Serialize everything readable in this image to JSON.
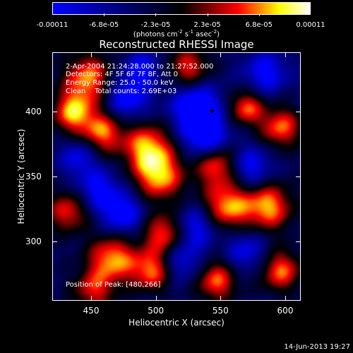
{
  "colorbar": {
    "ticks": [
      "-0.00011",
      "-6.8e-05",
      "-2.3e-05",
      "2.3e-05",
      "6.8e-05",
      "0.00011"
    ],
    "unit_prefix": "(photons cm",
    "unit_exp1": "-2",
    "unit_mid1": " s",
    "unit_exp2": "-1",
    "unit_mid2": " asec",
    "unit_exp3": "-2",
    "unit_suffix": ")",
    "range": [
      -0.00011,
      0.00011
    ],
    "colors": [
      "#0000ff",
      "#000000",
      "#ff0000",
      "#ffff00",
      "#ffffff"
    ]
  },
  "chart_data": {
    "type": "heatmap",
    "title": "Reconstructed RHESSI Image",
    "xlabel": "Heliocentric X (arcsec)",
    "ylabel": "Heliocentric Y (arcsec)",
    "xlim": [
      420,
      612
    ],
    "ylim": [
      254,
      446
    ],
    "x_ticks": [
      450,
      500,
      550,
      600
    ],
    "y_ticks": [
      300,
      350,
      400
    ],
    "annotations": {
      "time_range": "2-Apr-2004 21:24:28.000 to 21:27:52.000",
      "detectors": "Detectors: 4F 5F 6F 7F 8F, Att 0",
      "energy": "Energy Range: 25.0 - 50.0 keV",
      "method": "Clean    Total counts: 2.69E+03",
      "peak": "Position of Peak: [480,266]"
    },
    "source_marker": {
      "x": 543,
      "y": 401
    }
  },
  "footer": {
    "timestamp": "14-Jun-2013 19:27"
  }
}
